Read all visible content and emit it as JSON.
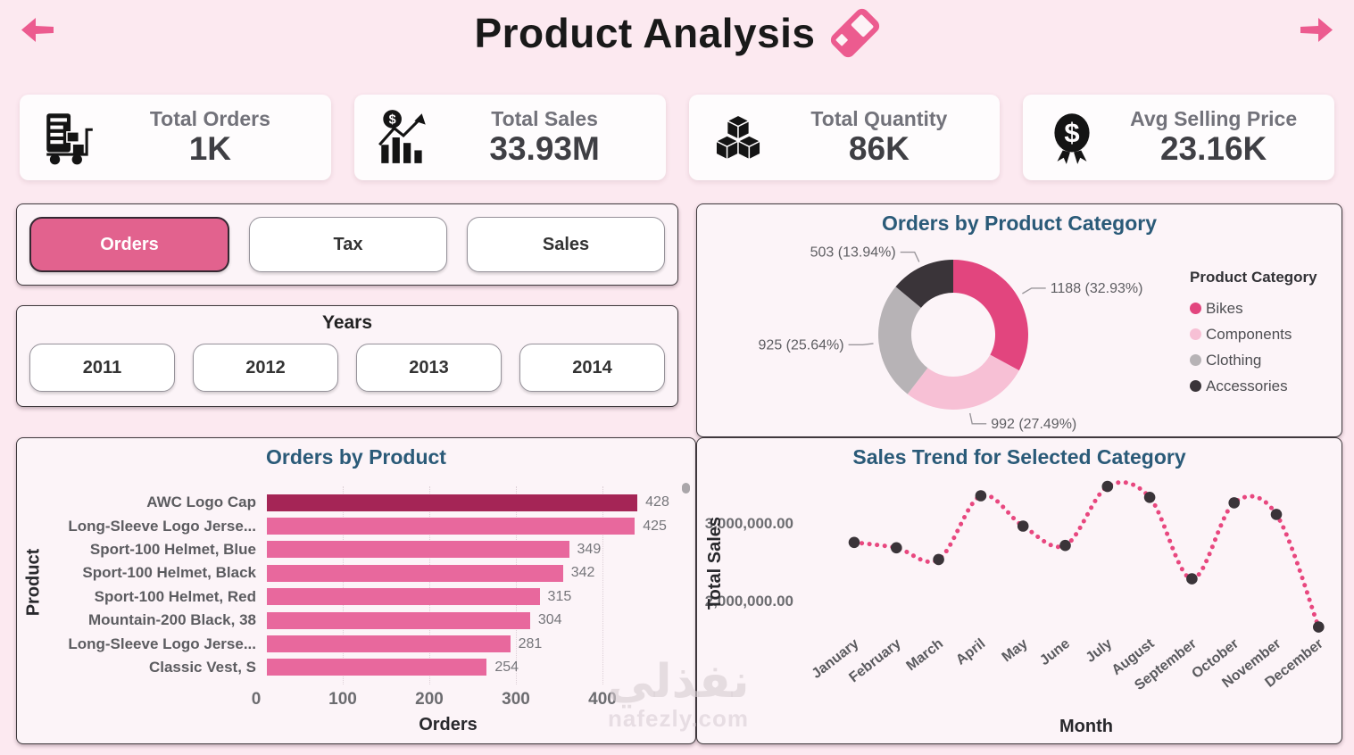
{
  "header": {
    "title": "Product Analysis"
  },
  "kpis": [
    {
      "label": "Total Orders",
      "value": "1K",
      "icon": "order-cart-icon"
    },
    {
      "label": "Total Sales",
      "value": "33.93M",
      "icon": "sales-chart-icon"
    },
    {
      "label": "Total Quantity",
      "value": "86K",
      "icon": "quantity-cubes-icon"
    },
    {
      "label": "Avg Selling Price",
      "value": "23.16K",
      "icon": "price-medal-icon"
    }
  ],
  "measure_buttons": [
    {
      "label": "Orders",
      "selected": true
    },
    {
      "label": "Tax",
      "selected": false
    },
    {
      "label": "Sales",
      "selected": false
    }
  ],
  "years": {
    "title": "Years",
    "options": [
      "2011",
      "2012",
      "2013",
      "2014"
    ]
  },
  "watermark": {
    "line1": "نفذلي",
    "line2": "nafezly.com"
  },
  "colors": {
    "accent_pink": "#e2628e",
    "icon_pink": "#ec5b8f",
    "title_blue": "#2a5a78",
    "bar_pink": "#e8689d",
    "bar_highlight": "#a52556",
    "line_pink": "#e8477f",
    "marker_dark": "#3a3439"
  },
  "chart_data": [
    {
      "type": "pie",
      "donut": true,
      "title": "Orders by Product Category",
      "legend_title": "Product Category",
      "legend_position": "right",
      "labels": [
        "Bikes",
        "Components",
        "Clothing",
        "Accessories"
      ],
      "values": [
        1188,
        992,
        925,
        503
      ],
      "percents": [
        "32.93%",
        "27.49%",
        "25.64%",
        "13.94%"
      ],
      "colors": [
        "#e2457e",
        "#f7c0d5",
        "#b7b3b6",
        "#3a3439"
      ]
    },
    {
      "type": "bar",
      "orientation": "horizontal",
      "title": "Orders by Product",
      "xlabel": "Orders",
      "ylabel": "Product",
      "categories": [
        "AWC Logo Cap",
        "Long-Sleeve Logo Jerse...",
        "Sport-100 Helmet, Blue",
        "Sport-100 Helmet, Black",
        "Sport-100 Helmet, Red",
        "Mountain-200 Black, 38",
        "Long-Sleeve Logo Jerse...",
        "Classic Vest, S"
      ],
      "values": [
        428,
        425,
        349,
        342,
        315,
        304,
        281,
        254
      ],
      "bar_colors": [
        "#a52556",
        "#e8689d",
        "#e8689d",
        "#e8689d",
        "#e8689d",
        "#e8689d",
        "#e8689d",
        "#e8689d"
      ],
      "xticks": [
        0,
        100,
        200,
        300,
        400
      ],
      "xlim": [
        0,
        440
      ],
      "grid": "vertical-dotted"
    },
    {
      "type": "line",
      "style": "dotted",
      "title": "Sales Trend for Selected Category",
      "xlabel": "Month",
      "ylabel": "Total Sales",
      "x": [
        "January",
        "February",
        "March",
        "April",
        "May",
        "June",
        "July",
        "August",
        "September",
        "October",
        "November",
        "December"
      ],
      "values": [
        2750000,
        2680000,
        2530000,
        3350000,
        2960000,
        2710000,
        3470000,
        3330000,
        2280000,
        3260000,
        3110000,
        1660000
      ],
      "yticks": [
        2000000,
        3000000
      ],
      "ytick_labels": [
        "2,000,000.00",
        "3,000,000.00"
      ],
      "ylim": [
        1500000,
        3700000
      ],
      "line_color": "#e8477f",
      "marker_color": "#3a3439"
    }
  ]
}
